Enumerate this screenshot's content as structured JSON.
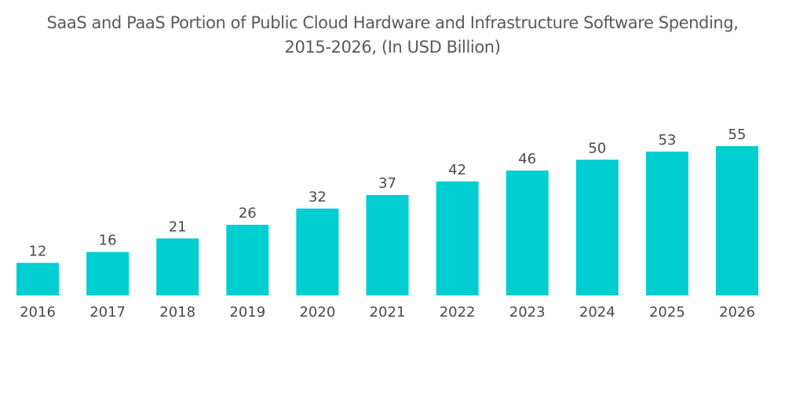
{
  "chart_data": {
    "type": "bar",
    "title": "SaaS and PaaS Portion of Public Cloud Hardware and Infrastructure Software Spending, 2015-2026, (In USD Billion)",
    "title_lines": [
      "SaaS and PaaS Portion of Public Cloud Hardware and Infrastructure Software Spending,",
      "2015-2026, (In USD Billion)"
    ],
    "categories": [
      "2016",
      "2017",
      "2018",
      "2019",
      "2020",
      "2021",
      "2022",
      "2023",
      "2024",
      "2025",
      "2026"
    ],
    "values": [
      12,
      16,
      21,
      26,
      32,
      37,
      42,
      46,
      50,
      53,
      55
    ],
    "xlabel": "",
    "ylabel": "",
    "ylim": [
      0,
      55
    ],
    "grid": false,
    "legend": "none",
    "bar_color": "#00ced1",
    "data_labels": true
  }
}
